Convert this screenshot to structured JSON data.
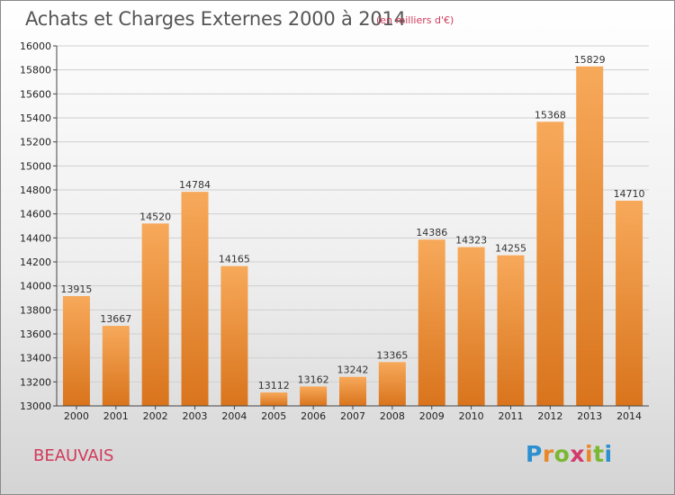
{
  "title": "Achats et Charges Externes 2000 à 2014",
  "subtitle": "(en milliers d'€)",
  "city": "BEAUVAIS",
  "brand": {
    "letters": [
      "P",
      "r",
      "o",
      "x",
      "i",
      "t",
      "i"
    ],
    "colors": [
      "#2b8fd0",
      "#e8882b",
      "#7ab833",
      "#d23a6a",
      "#e8882b",
      "#7ab833",
      "#2b8fd0"
    ]
  },
  "colors": {
    "bar_top": "#f7a95a",
    "bar_bottom": "#d9741c",
    "axis": "#444444",
    "grid": "#cfcfcf"
  },
  "chart_data": {
    "type": "bar",
    "title": "Achats et Charges Externes 2000 à 2014",
    "subtitle": "(en milliers d'€)",
    "categories": [
      "2000",
      "2001",
      "2002",
      "2003",
      "2004",
      "2005",
      "2006",
      "2007",
      "2008",
      "2009",
      "2010",
      "2011",
      "2012",
      "2013",
      "2014"
    ],
    "values": [
      13915,
      13667,
      14520,
      14784,
      14165,
      13112,
      13162,
      13242,
      13365,
      14386,
      14323,
      14255,
      15368,
      15829,
      14710
    ],
    "ylim": [
      13000,
      16000
    ],
    "yticks": [
      13000,
      13200,
      13400,
      13600,
      13800,
      14000,
      14200,
      14400,
      14600,
      14800,
      15000,
      15200,
      15400,
      15600,
      15800,
      16000
    ],
    "grid": true,
    "legend": "none"
  }
}
